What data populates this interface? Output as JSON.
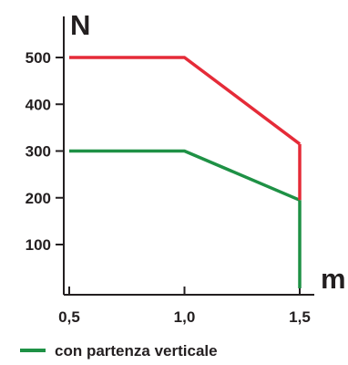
{
  "chart_data": {
    "type": "line",
    "xlabel": "m",
    "ylabel": "N",
    "x_ticks": [
      "0,5",
      "1,0",
      "1,5"
    ],
    "x_tick_values": [
      0.5,
      1.0,
      1.5
    ],
    "y_ticks": [
      "100",
      "200",
      "300",
      "400",
      "500"
    ],
    "y_tick_values": [
      100,
      200,
      300,
      400,
      500
    ],
    "xlim": [
      0.5,
      1.5
    ],
    "ylim": [
      0,
      500
    ],
    "grid": false,
    "series": [
      {
        "color": "#e52b38",
        "x": [
          0.5,
          1.0,
          1.5
        ],
        "y": [
          500,
          500,
          315
        ]
      },
      {
        "name": "con partenza verticale",
        "color": "#1e9145",
        "x": [
          0.5,
          1.0,
          1.5
        ],
        "y": [
          300,
          300,
          195
        ]
      }
    ],
    "vertical_end_segment": {
      "x": 1.5,
      "red_from": 315,
      "red_to": 195,
      "green_from": 195,
      "green_to": 0
    },
    "legend": {
      "position": "bottom-left",
      "entries": [
        {
          "label": "con partenza verticale",
          "color": "#1e9145"
        }
      ]
    }
  }
}
